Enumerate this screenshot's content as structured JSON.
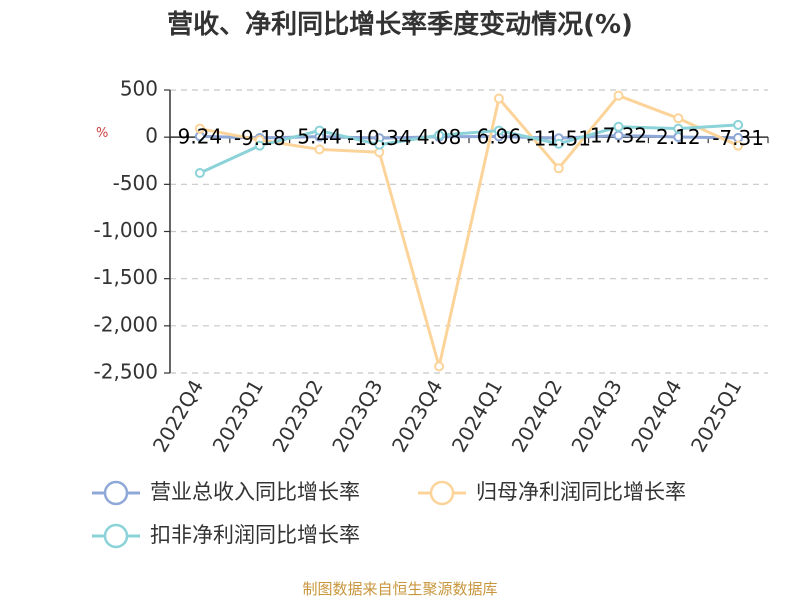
{
  "title": "营收、净利同比增长率季度变动情况(%)",
  "source": "制图数据来自恒生聚源数据库",
  "chart_data": {
    "type": "line",
    "categories": [
      "2022Q4",
      "2023Q1",
      "2023Q2",
      "2023Q3",
      "2023Q4",
      "2024Q1",
      "2024Q2",
      "2024Q3",
      "2024Q4",
      "2025Q1"
    ],
    "ylim": [
      -2500,
      500
    ],
    "yticks": [
      500,
      0,
      -500,
      -1000,
      -1500,
      -2000,
      -2500
    ],
    "ytick_labels": [
      "500",
      "0",
      "-500",
      "-1,000",
      "-1,500",
      "-2,000",
      "-2,500"
    ],
    "ylabel": "%",
    "grid": true,
    "legend_position": "bottom",
    "series": [
      {
        "name": "营业总收入同比增长率",
        "color": "#8fa8d8",
        "values": [
          9.24,
          -9.18,
          5.44,
          -10.34,
          4.08,
          6.96,
          -11.51,
          17.32,
          2.12,
          -7.31
        ],
        "labels": [
          "9.24",
          "-9.18",
          "5.44",
          "-10.34",
          "4.08",
          "6.96",
          "-11.51",
          "17.32",
          "2.12",
          "-7.31"
        ]
      },
      {
        "name": "归母净利润同比增长率",
        "color": "#fcd49a",
        "values": [
          90,
          -30,
          -130,
          -160,
          -2430,
          410,
          -330,
          440,
          200,
          -90
        ]
      },
      {
        "name": "扣非净利润同比增长率",
        "color": "#8bd3d8",
        "values": [
          -380,
          -90,
          70,
          -80,
          20,
          70,
          -70,
          110,
          90,
          130
        ]
      }
    ]
  }
}
